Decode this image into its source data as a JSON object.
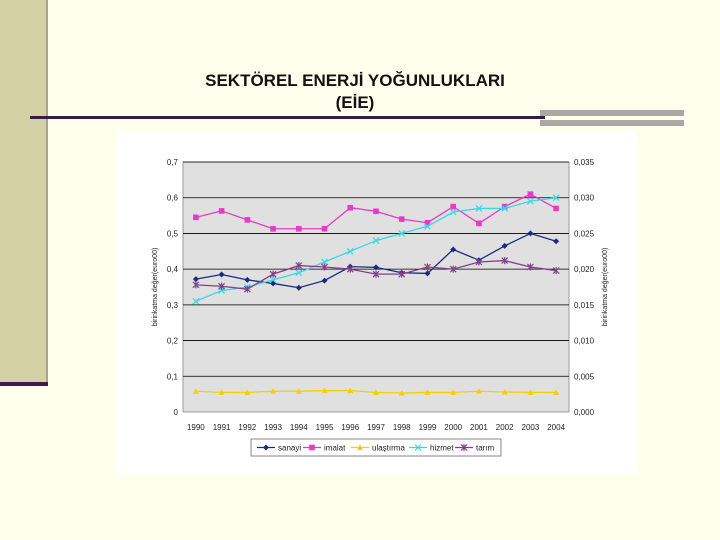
{
  "slide": {
    "title_line1": "SEKTÖREL ENERJİ YOĞUNLUKLARI",
    "title_line2": "(EİE)"
  },
  "colors": {
    "sanayi": "#1a2a80",
    "imalat": "#e83ac8",
    "ulastirma": "#f5d000",
    "hizmet": "#36d8e8",
    "tarim": "#80408a",
    "plot_bg": "#e0e0e0"
  },
  "chart_data": {
    "type": "line",
    "x": [
      "1990",
      "1991",
      "1992",
      "1993",
      "1994",
      "1995",
      "1996",
      "1997",
      "1998",
      "1999",
      "2000",
      "2001",
      "2002",
      "2003",
      "2004"
    ],
    "ylim": [
      0,
      0.7
    ],
    "y_ticks": [
      "0",
      "0,1",
      "0,2",
      "0,3",
      "0,4",
      "0,5",
      "0,6",
      "0,7"
    ],
    "y2lim": [
      0,
      0.035
    ],
    "y2_ticks": [
      "0,000",
      "0,005",
      "0,010",
      "0,015",
      "0,020",
      "0,025",
      "0,030",
      "0,035"
    ],
    "ylabel": "birinkatma değer(euro00)",
    "y2label": "birinkatma değer(euro00)",
    "grid": true,
    "legend_position": "bottom",
    "series": [
      {
        "name": "sanayi",
        "axis": "left",
        "marker": "diamond",
        "values": [
          0.372,
          0.385,
          0.37,
          0.36,
          0.348,
          0.368,
          0.407,
          0.405,
          0.39,
          0.388,
          0.455,
          0.425,
          0.465,
          0.5,
          0.478
        ]
      },
      {
        "name": "imalat",
        "axis": "left",
        "marker": "square",
        "values": [
          0.545,
          0.563,
          0.538,
          0.513,
          0.513,
          0.513,
          0.572,
          0.562,
          0.54,
          0.53,
          0.575,
          0.528,
          0.575,
          0.61,
          0.57
        ]
      },
      {
        "name": "ulaştırma",
        "axis": "left",
        "marker": "triangle",
        "values": [
          0.058,
          0.055,
          0.055,
          0.058,
          0.058,
          0.06,
          0.06,
          0.055,
          0.053,
          0.055,
          0.055,
          0.058,
          0.056,
          0.055,
          0.055
        ]
      },
      {
        "name": "hizmet",
        "axis": "right",
        "marker": "x",
        "values": [
          0.0155,
          0.017,
          0.0175,
          0.0185,
          0.0195,
          0.021,
          0.0225,
          0.024,
          0.025,
          0.026,
          0.028,
          0.0285,
          0.0285,
          0.0295,
          0.03
        ]
      },
      {
        "name": "tarım",
        "axis": "right",
        "marker": "star",
        "values": [
          0.0178,
          0.0176,
          0.0172,
          0.0193,
          0.0205,
          0.0203,
          0.02,
          0.0193,
          0.0193,
          0.0203,
          0.02,
          0.021,
          0.0212,
          0.0203,
          0.0198
        ]
      }
    ]
  }
}
